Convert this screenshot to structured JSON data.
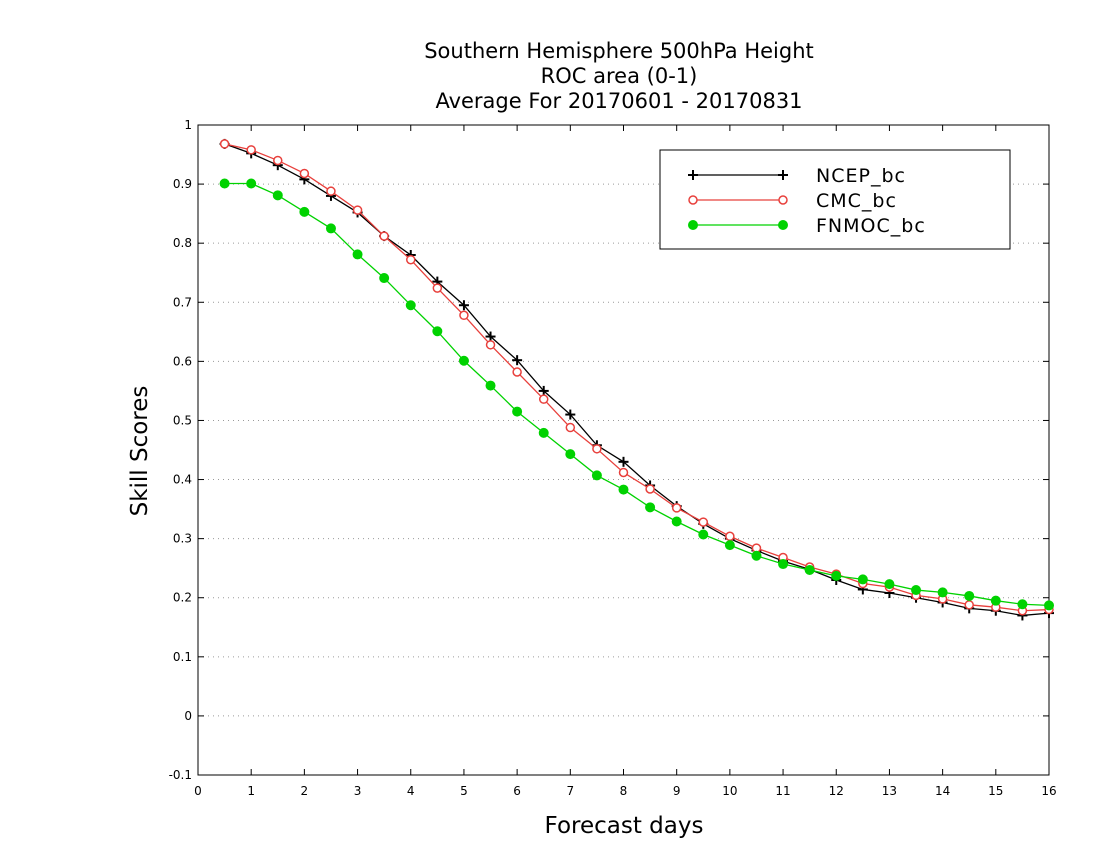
{
  "chart_data": {
    "type": "line",
    "title": [
      "Southern Hemisphere 500hPa Height",
      "ROC area (0-1)",
      "Average For 20170601 - 20170831"
    ],
    "xlabel": "Forecast days",
    "ylabel": "Skill Scores",
    "xlim": [
      0,
      16
    ],
    "ylim": [
      -0.1,
      1
    ],
    "x_ticks": [
      "0",
      "1",
      "2",
      "3",
      "4",
      "5",
      "6",
      "7",
      "8",
      "9",
      "10",
      "11",
      "12",
      "13",
      "14",
      "15",
      "16"
    ],
    "y_ticks": [
      "-0.1",
      "0",
      "0.1",
      "0.2",
      "0.3",
      "0.4",
      "0.5",
      "0.6",
      "0.7",
      "0.8",
      "0.9",
      "1"
    ],
    "grid": "horizontal dotted",
    "legend_position": "top-right",
    "x": [
      0.5,
      1,
      1.5,
      2,
      2.5,
      3,
      3.5,
      4,
      4.5,
      5,
      5.5,
      6,
      6.5,
      7,
      7.5,
      8,
      8.5,
      9,
      9.5,
      10,
      10.5,
      11,
      11.5,
      12,
      12.5,
      13,
      13.5,
      14,
      14.5,
      15,
      15.5,
      16
    ],
    "series": [
      {
        "name": "NCEP_bc",
        "color": "#000000",
        "marker": "plus",
        "values": [
          0.968,
          0.952,
          0.932,
          0.908,
          0.88,
          0.852,
          0.812,
          0.78,
          0.735,
          0.695,
          0.642,
          0.602,
          0.55,
          0.51,
          0.458,
          0.43,
          0.39,
          0.355,
          0.325,
          0.3,
          0.28,
          0.262,
          0.248,
          0.23,
          0.214,
          0.208,
          0.2,
          0.192,
          0.182,
          0.178,
          0.17,
          0.174
        ]
      },
      {
        "name": "CMC_bc",
        "color": "#e8403c",
        "marker": "open-circle",
        "values": [
          0.968,
          0.958,
          0.94,
          0.918,
          0.888,
          0.856,
          0.812,
          0.772,
          0.724,
          0.678,
          0.628,
          0.582,
          0.536,
          0.488,
          0.452,
          0.412,
          0.384,
          0.352,
          0.328,
          0.304,
          0.284,
          0.268,
          0.252,
          0.24,
          0.224,
          0.218,
          0.204,
          0.198,
          0.188,
          0.184,
          0.178,
          0.18
        ]
      },
      {
        "name": "FNMOC_bc",
        "color": "#00d200",
        "marker": "filled-circle",
        "values": [
          0.901,
          0.901,
          0.881,
          0.853,
          0.825,
          0.781,
          0.741,
          0.695,
          0.651,
          0.601,
          0.559,
          0.515,
          0.479,
          0.443,
          0.407,
          0.383,
          0.353,
          0.329,
          0.307,
          0.289,
          0.271,
          0.257,
          0.247,
          0.237,
          0.231,
          0.223,
          0.213,
          0.209,
          0.203,
          0.195,
          0.189,
          0.187
        ]
      }
    ]
  }
}
